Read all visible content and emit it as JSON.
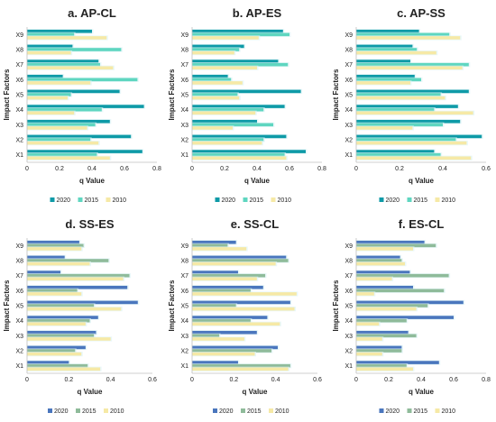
{
  "colors": {
    "top_2020": "#0e9aa7",
    "top_2015": "#5fd6c0",
    "top_2010": "#f6e9a6",
    "bottom_2020": "#4a76bd",
    "bottom_2015": "#8fbb9a",
    "bottom_2010": "#f6e9a6",
    "halo": "#def3f6"
  },
  "chart_data": [
    {
      "type": "bar",
      "orientation": "horizontal",
      "title": "a. AP-CL",
      "xlabel": "q Value",
      "ylabel": "Impact Factors",
      "categories": [
        "X1",
        "X2",
        "X3",
        "X4",
        "X5",
        "X6",
        "X7",
        "X8",
        "X9"
      ],
      "xlim": [
        0,
        0.8
      ],
      "xticks": [
        "0",
        "0.2",
        "0.4",
        "0.6",
        "0.8"
      ],
      "series": [
        {
          "name": "2020",
          "values": [
            0.71,
            0.64,
            0.51,
            0.72,
            0.57,
            0.22,
            0.44,
            0.28,
            0.4
          ]
        },
        {
          "name": "2015",
          "values": [
            0.43,
            0.39,
            0.42,
            0.46,
            0.27,
            0.68,
            0.45,
            0.58,
            0.29
          ]
        },
        {
          "name": "2010",
          "values": [
            0.51,
            0.44,
            0.37,
            0.29,
            0.25,
            0.39,
            0.53,
            0.27,
            0.49
          ]
        }
      ],
      "legend_position": "bottom"
    },
    {
      "type": "bar",
      "orientation": "horizontal",
      "title": "b. AP-ES",
      "xlabel": "q Value",
      "ylabel": "Impact Factors",
      "categories": [
        "X1",
        "X2",
        "X3",
        "X4",
        "X5",
        "X6",
        "X7",
        "X8",
        "X9"
      ],
      "xlim": [
        0,
        0.8
      ],
      "xticks": [
        "0",
        "0.2",
        "0.4",
        "0.6",
        "0.8"
      ],
      "series": [
        {
          "name": "2020",
          "values": [
            0.7,
            0.58,
            0.4,
            0.57,
            0.67,
            0.22,
            0.53,
            0.32,
            0.56
          ]
        },
        {
          "name": "2015",
          "values": [
            0.57,
            0.44,
            0.5,
            0.44,
            0.28,
            0.24,
            0.59,
            0.29,
            0.6
          ]
        },
        {
          "name": "2010",
          "values": [
            0.58,
            0.43,
            0.25,
            0.39,
            0.29,
            0.31,
            0.4,
            0.26,
            0.41
          ]
        }
      ],
      "legend_position": "bottom"
    },
    {
      "type": "bar",
      "orientation": "horizontal",
      "title": "c. AP-SS",
      "xlabel": "q Value",
      "ylabel": "Impact Factors",
      "categories": [
        "X1",
        "X2",
        "X3",
        "X4",
        "X5",
        "X6",
        "X7",
        "X8",
        "X9"
      ],
      "xlim": [
        0,
        0.6
      ],
      "xticks": [
        "0",
        "0.2",
        "0.4",
        "0.6"
      ],
      "series": [
        {
          "name": "2020",
          "values": [
            0.36,
            0.58,
            0.48,
            0.47,
            0.52,
            0.27,
            0.25,
            0.26,
            0.29
          ]
        },
        {
          "name": "2015",
          "values": [
            0.39,
            0.46,
            0.4,
            0.36,
            0.39,
            0.3,
            0.52,
            0.28,
            0.43
          ]
        },
        {
          "name": "2010",
          "values": [
            0.53,
            0.51,
            0.26,
            0.54,
            0.41,
            0.25,
            0.49,
            0.37,
            0.48
          ]
        }
      ],
      "legend_position": "bottom"
    },
    {
      "type": "bar",
      "orientation": "horizontal",
      "title": "d. SS-ES",
      "xlabel": "q Value",
      "ylabel": "Impact Factors",
      "categories": [
        "X1",
        "X2",
        "X3",
        "X4",
        "X5",
        "X6",
        "X7",
        "X8",
        "X9"
      ],
      "xlim": [
        0,
        0.6
      ],
      "xticks": [
        "0",
        "0.2",
        "0.4",
        "0.6"
      ],
      "series": [
        {
          "name": "2020",
          "values": [
            0.2,
            0.28,
            0.33,
            0.34,
            0.53,
            0.48,
            0.16,
            0.18,
            0.25
          ]
        },
        {
          "name": "2015",
          "values": [
            0.29,
            0.23,
            0.32,
            0.3,
            0.32,
            0.24,
            0.49,
            0.39,
            0.27
          ]
        },
        {
          "name": "2010",
          "values": [
            0.35,
            0.26,
            0.4,
            0.28,
            0.45,
            0.26,
            0.46,
            0.3,
            0.26
          ]
        }
      ],
      "legend_position": "bottom"
    },
    {
      "type": "bar",
      "orientation": "horizontal",
      "title": "e. SS-CL",
      "xlabel": "q Value",
      "ylabel": "Impact Factors",
      "categories": [
        "X1",
        "X2",
        "X3",
        "X4",
        "X5",
        "X6",
        "X7",
        "X8",
        "X9"
      ],
      "xlim": [
        0,
        0.6
      ],
      "xticks": [
        "0",
        "0.2",
        "0.4",
        "0.6"
      ],
      "series": [
        {
          "name": "2020",
          "values": [
            0.22,
            0.41,
            0.31,
            0.36,
            0.47,
            0.34,
            0.22,
            0.45,
            0.21
          ]
        },
        {
          "name": "2015",
          "values": [
            0.47,
            0.38,
            0.13,
            0.28,
            0.21,
            0.28,
            0.35,
            0.46,
            0.17
          ]
        },
        {
          "name": "2010",
          "values": [
            0.46,
            0.3,
            0.25,
            0.42,
            0.49,
            0.5,
            0.31,
            0.4,
            0.26
          ]
        }
      ],
      "legend_position": "bottom"
    },
    {
      "type": "bar",
      "orientation": "horizontal",
      "title": "f. ES-CL",
      "xlabel": "q Value",
      "ylabel": "Impact Factors",
      "categories": [
        "X1",
        "X2",
        "X3",
        "X4",
        "X5",
        "X6",
        "X7",
        "X8",
        "X9"
      ],
      "xlim": [
        0,
        0.8
      ],
      "xticks": [
        "0",
        "0.2",
        "0.4",
        "0.6",
        "0.8"
      ],
      "series": [
        {
          "name": "2020",
          "values": [
            0.51,
            0.28,
            0.32,
            0.6,
            0.66,
            0.35,
            0.33,
            0.27,
            0.42
          ]
        },
        {
          "name": "2015",
          "values": [
            0.31,
            0.28,
            0.37,
            0.31,
            0.44,
            0.54,
            0.57,
            0.28,
            0.49
          ]
        },
        {
          "name": "2010",
          "values": [
            0.35,
            0.16,
            0.16,
            0.14,
            0.37,
            0.11,
            0.22,
            0.3,
            0.35
          ]
        }
      ],
      "legend_position": "bottom"
    }
  ]
}
